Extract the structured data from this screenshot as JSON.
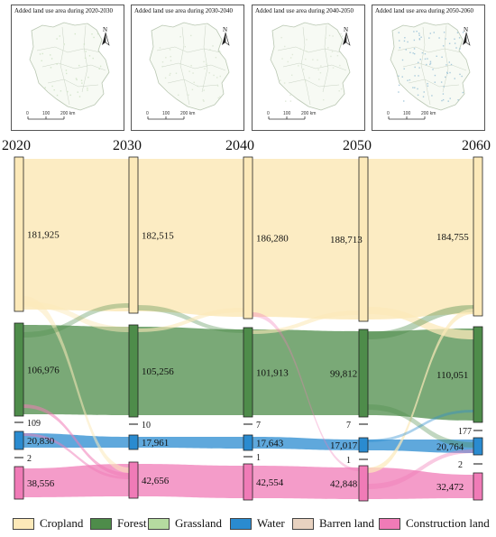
{
  "maps": [
    {
      "title": "Added land use area during 2020-2030",
      "north": "N",
      "scale": [
        "0",
        "100",
        "200 km"
      ]
    },
    {
      "title": "Added land use area during 2030-2040",
      "north": "N",
      "scale": [
        "0",
        "100",
        "200 km"
      ]
    },
    {
      "title": "Added land use area during 2040-2050",
      "north": "N",
      "scale": [
        "0",
        "100",
        "200 km"
      ]
    },
    {
      "title": "Added land use area during 2050-2060",
      "north": "N",
      "scale": [
        "0",
        "100",
        "200 km"
      ]
    }
  ],
  "chart_data": {
    "type": "sankey",
    "years": [
      "2020",
      "2030",
      "2040",
      "2050",
      "2060"
    ],
    "categories": [
      "Cropland",
      "Forest",
      "Grassland",
      "Water",
      "Barren land",
      "Construction land"
    ],
    "colors": {
      "Cropland": "#fce9b9",
      "Forest": "#4e8c4a",
      "Grassland": "#b5dba0",
      "Water": "#2a8bd0",
      "Barren land": "#e8d2c0",
      "Construction land": "#f07bb7"
    },
    "values": [
      {
        "Cropland": "181,925",
        "Forest": "106,976",
        "Grassland": "109",
        "Water": "20,830",
        "Barren land": "2",
        "Construction land": "38,556"
      },
      {
        "Cropland": "182,515",
        "Forest": "105,256",
        "Grassland": "10",
        "Water": "17,961",
        "Barren land": "",
        "Construction land": "42,656"
      },
      {
        "Cropland": "186,280",
        "Forest": "101,913",
        "Grassland": "7",
        "Water": "17,643",
        "Barren land": "1",
        "Construction land": "42,554"
      },
      {
        "Cropland": "188,713",
        "Forest": "99,812",
        "Grassland": "7",
        "Water": "17,017",
        "Barren land": "1",
        "Construction land": "42,848"
      },
      {
        "Cropland": "184,755",
        "Forest": "110,051",
        "Grassland": "177",
        "Water": "20,764",
        "Barren land": "2",
        "Construction land": "32,472"
      }
    ]
  },
  "legend": [
    {
      "label": "Cropland",
      "color": "#fce9b9"
    },
    {
      "label": "Forest",
      "color": "#4e8c4a"
    },
    {
      "label": "Grassland",
      "color": "#b5dba0"
    },
    {
      "label": "Water",
      "color": "#2a8bd0"
    },
    {
      "label": "Barren land",
      "color": "#e8d2c0"
    },
    {
      "label": "Construction land",
      "color": "#f07bb7"
    }
  ]
}
